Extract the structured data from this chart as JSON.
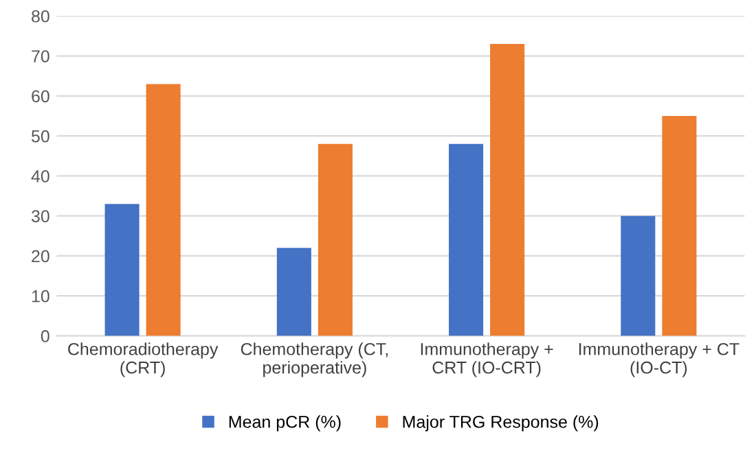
{
  "chart_data": {
    "type": "bar",
    "categories": [
      "Chemoradiotherapy (CRT)",
      "Chemotherapy (CT, perioperative)",
      "Immunotherapy + CRT (IO-CRT)",
      "Immunotherapy + CT (IO-CT)"
    ],
    "series": [
      {
        "name": "Mean pCR (%)",
        "color": "#4472c4",
        "values": [
          33,
          22,
          48,
          30
        ]
      },
      {
        "name": "Major TRG Response (%)",
        "color": "#ed7d31",
        "values": [
          63,
          48,
          73,
          55
        ]
      }
    ],
    "ylim": [
      0,
      80
    ],
    "yticks": [
      0,
      10,
      20,
      30,
      40,
      50,
      60,
      70,
      80
    ],
    "grid": "y",
    "legend": "bottom"
  }
}
